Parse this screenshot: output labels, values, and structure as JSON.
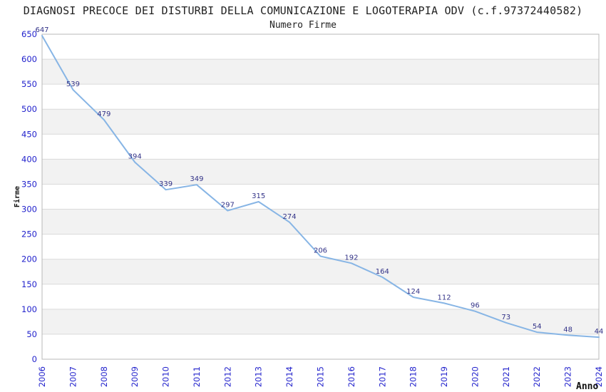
{
  "chart_data": {
    "type": "line",
    "title": "DIAGNOSI PRECOCE DEI DISTURBI DELLA COMUNICAZIONE E LOGOTERAPIA ODV (c.f.97372440582)",
    "subtitle": "Numero Firme",
    "xlabel": "Anno",
    "ylabel": "Firme",
    "x": [
      "2006",
      "2007",
      "2008",
      "2009",
      "2010",
      "2011",
      "2012",
      "2013",
      "2014",
      "2015",
      "2016",
      "2017",
      "2018",
      "2019",
      "2020",
      "2021",
      "2022",
      "2023",
      "2024"
    ],
    "values": [
      647,
      539,
      479,
      394,
      339,
      349,
      297,
      315,
      274,
      206,
      192,
      164,
      124,
      112,
      96,
      73,
      54,
      48,
      44
    ],
    "ylim": [
      0,
      650
    ],
    "ytick_step": 50,
    "grid": "horizontal-on",
    "legend": "none",
    "band_fill": "alternating-horizontal",
    "data_labels_visible": true,
    "colors": {
      "line": "#87b5e5",
      "tick_label": "#2222cc",
      "data_label": "#333388",
      "band": "#f2f2f2",
      "gridline": "#dadada",
      "border": "#b8b8b8",
      "title": "#222222",
      "axis_label": "#111111",
      "background": "#ffffff"
    }
  }
}
